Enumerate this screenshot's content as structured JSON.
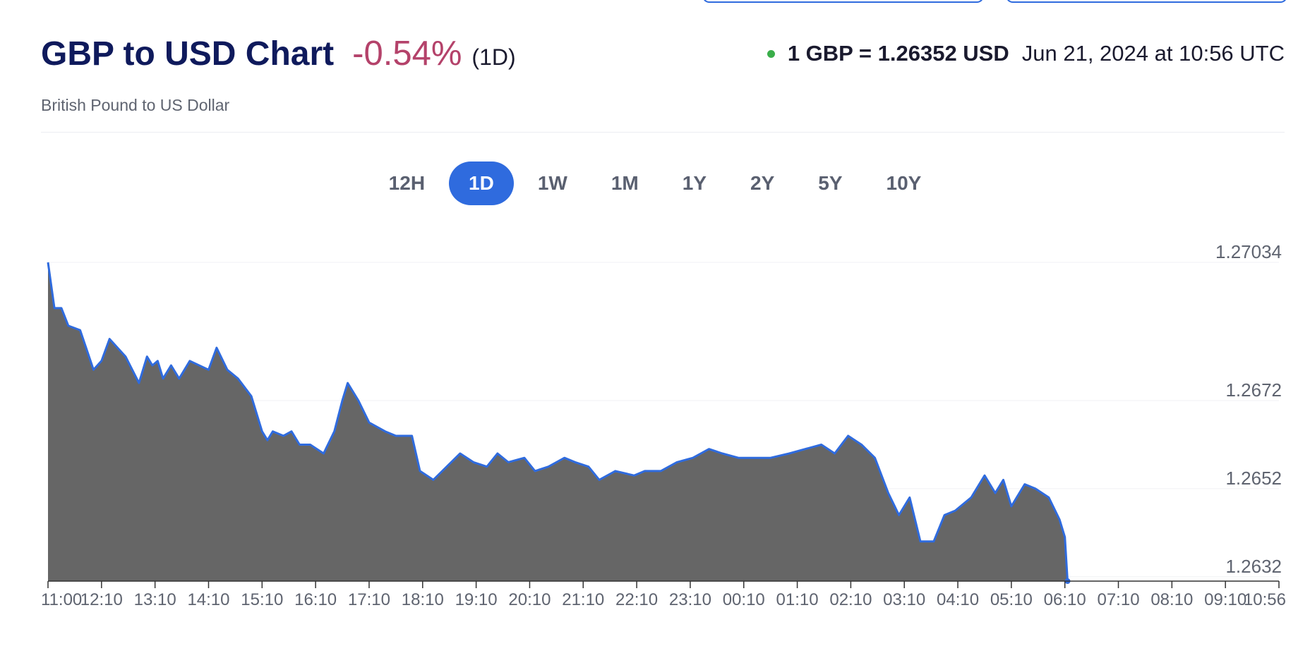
{
  "header": {
    "title": "GBP to USD Chart",
    "change": "-0.54%",
    "period": "(1D)",
    "subtitle": "British Pound to US Dollar",
    "rate": "1 GBP = 1.26352 USD",
    "timestamp": "Jun 21, 2024 at 10:56 UTC"
  },
  "ranges": [
    {
      "label": "12H",
      "active": false
    },
    {
      "label": "1D",
      "active": true
    },
    {
      "label": "1W",
      "active": false
    },
    {
      "label": "1M",
      "active": false
    },
    {
      "label": "1Y",
      "active": false
    },
    {
      "label": "2Y",
      "active": false
    },
    {
      "label": "5Y",
      "active": false
    },
    {
      "label": "10Y",
      "active": false
    }
  ],
  "colors": {
    "title": "#0f1a5c",
    "change_negative": "#b4426a",
    "accent": "#2f6bde",
    "area_fill": "#666666",
    "line": "#2f6bde",
    "live_dot": "#3aae4a"
  },
  "chart_data": {
    "type": "area",
    "y_ticks": [
      "1.27034",
      "1.2672",
      "1.2652",
      "1.2632"
    ],
    "ylim": [
      1.2631,
      1.27034
    ],
    "grid": true,
    "x_ticks": [
      "11:00",
      "12:10",
      "13:10",
      "14:10",
      "15:10",
      "16:10",
      "17:10",
      "18:10",
      "19:10",
      "20:10",
      "21:10",
      "22:10",
      "23:10",
      "00:10",
      "01:10",
      "02:10",
      "03:10",
      "04:10",
      "05:10",
      "06:10",
      "07:10",
      "08:10",
      "09:10",
      "10:56"
    ],
    "series": [
      {
        "values": [
          [
            0,
            1.27034
          ],
          [
            0.12,
            1.2693
          ],
          [
            0.25,
            1.2693
          ],
          [
            0.38,
            1.2689
          ],
          [
            0.6,
            1.2688
          ],
          [
            0.85,
            1.2679
          ],
          [
            1.0,
            1.2681
          ],
          [
            1.15,
            1.2686
          ],
          [
            1.45,
            1.2682
          ],
          [
            1.7,
            1.2676
          ],
          [
            1.85,
            1.2682
          ],
          [
            1.95,
            1.268
          ],
          [
            2.05,
            1.2681
          ],
          [
            2.15,
            1.2677
          ],
          [
            2.3,
            1.268
          ],
          [
            2.45,
            1.2677
          ],
          [
            2.65,
            1.2681
          ],
          [
            3.0,
            1.2679
          ],
          [
            3.15,
            1.2684
          ],
          [
            3.35,
            1.2679
          ],
          [
            3.55,
            1.2677
          ],
          [
            3.8,
            1.2673
          ],
          [
            4.0,
            1.2665
          ],
          [
            4.1,
            1.2663
          ],
          [
            4.2,
            1.2665
          ],
          [
            4.4,
            1.2664
          ],
          [
            4.55,
            1.2665
          ],
          [
            4.7,
            1.2662
          ],
          [
            4.9,
            1.2662
          ],
          [
            5.15,
            1.266
          ],
          [
            5.35,
            1.2665
          ],
          [
            5.5,
            1.2672
          ],
          [
            5.6,
            1.2676
          ],
          [
            5.8,
            1.2672
          ],
          [
            6.0,
            1.2667
          ],
          [
            6.3,
            1.2665
          ],
          [
            6.5,
            1.2664
          ],
          [
            6.8,
            1.2664
          ],
          [
            6.95,
            1.2656
          ],
          [
            7.2,
            1.2654
          ],
          [
            7.45,
            1.2657
          ],
          [
            7.7,
            1.266
          ],
          [
            7.95,
            1.2658
          ],
          [
            8.2,
            1.2657
          ],
          [
            8.4,
            1.266
          ],
          [
            8.6,
            1.2658
          ],
          [
            8.9,
            1.2659
          ],
          [
            9.1,
            1.2656
          ],
          [
            9.35,
            1.2657
          ],
          [
            9.65,
            1.2659
          ],
          [
            9.85,
            1.2658
          ],
          [
            10.1,
            1.2657
          ],
          [
            10.3,
            1.2654
          ],
          [
            10.6,
            1.2656
          ],
          [
            10.95,
            1.2655
          ],
          [
            11.15,
            1.2656
          ],
          [
            11.45,
            1.2656
          ],
          [
            11.75,
            1.2658
          ],
          [
            12.05,
            1.2659
          ],
          [
            12.35,
            1.2661
          ],
          [
            12.6,
            1.266
          ],
          [
            12.9,
            1.2659
          ],
          [
            13.15,
            1.2659
          ],
          [
            13.5,
            1.2659
          ],
          [
            13.85,
            1.266
          ],
          [
            14.15,
            1.2661
          ],
          [
            14.45,
            1.2662
          ],
          [
            14.7,
            1.266
          ],
          [
            14.95,
            1.2664
          ],
          [
            15.2,
            1.2662
          ],
          [
            15.45,
            1.2659
          ],
          [
            15.7,
            1.2651
          ],
          [
            15.9,
            1.2646
          ],
          [
            16.1,
            1.265
          ],
          [
            16.3,
            1.264
          ],
          [
            16.55,
            1.264
          ],
          [
            16.75,
            1.2646
          ],
          [
            16.95,
            1.2647
          ],
          [
            17.25,
            1.265
          ],
          [
            17.5,
            1.2655
          ],
          [
            17.7,
            1.2651
          ],
          [
            17.85,
            1.2654
          ],
          [
            18.0,
            1.2648
          ],
          [
            18.25,
            1.2653
          ],
          [
            18.45,
            1.2652
          ],
          [
            18.7,
            1.265
          ],
          [
            18.9,
            1.2645
          ],
          [
            19.0,
            1.2641
          ],
          [
            19.05,
            1.2631
          ]
        ]
      }
    ]
  }
}
